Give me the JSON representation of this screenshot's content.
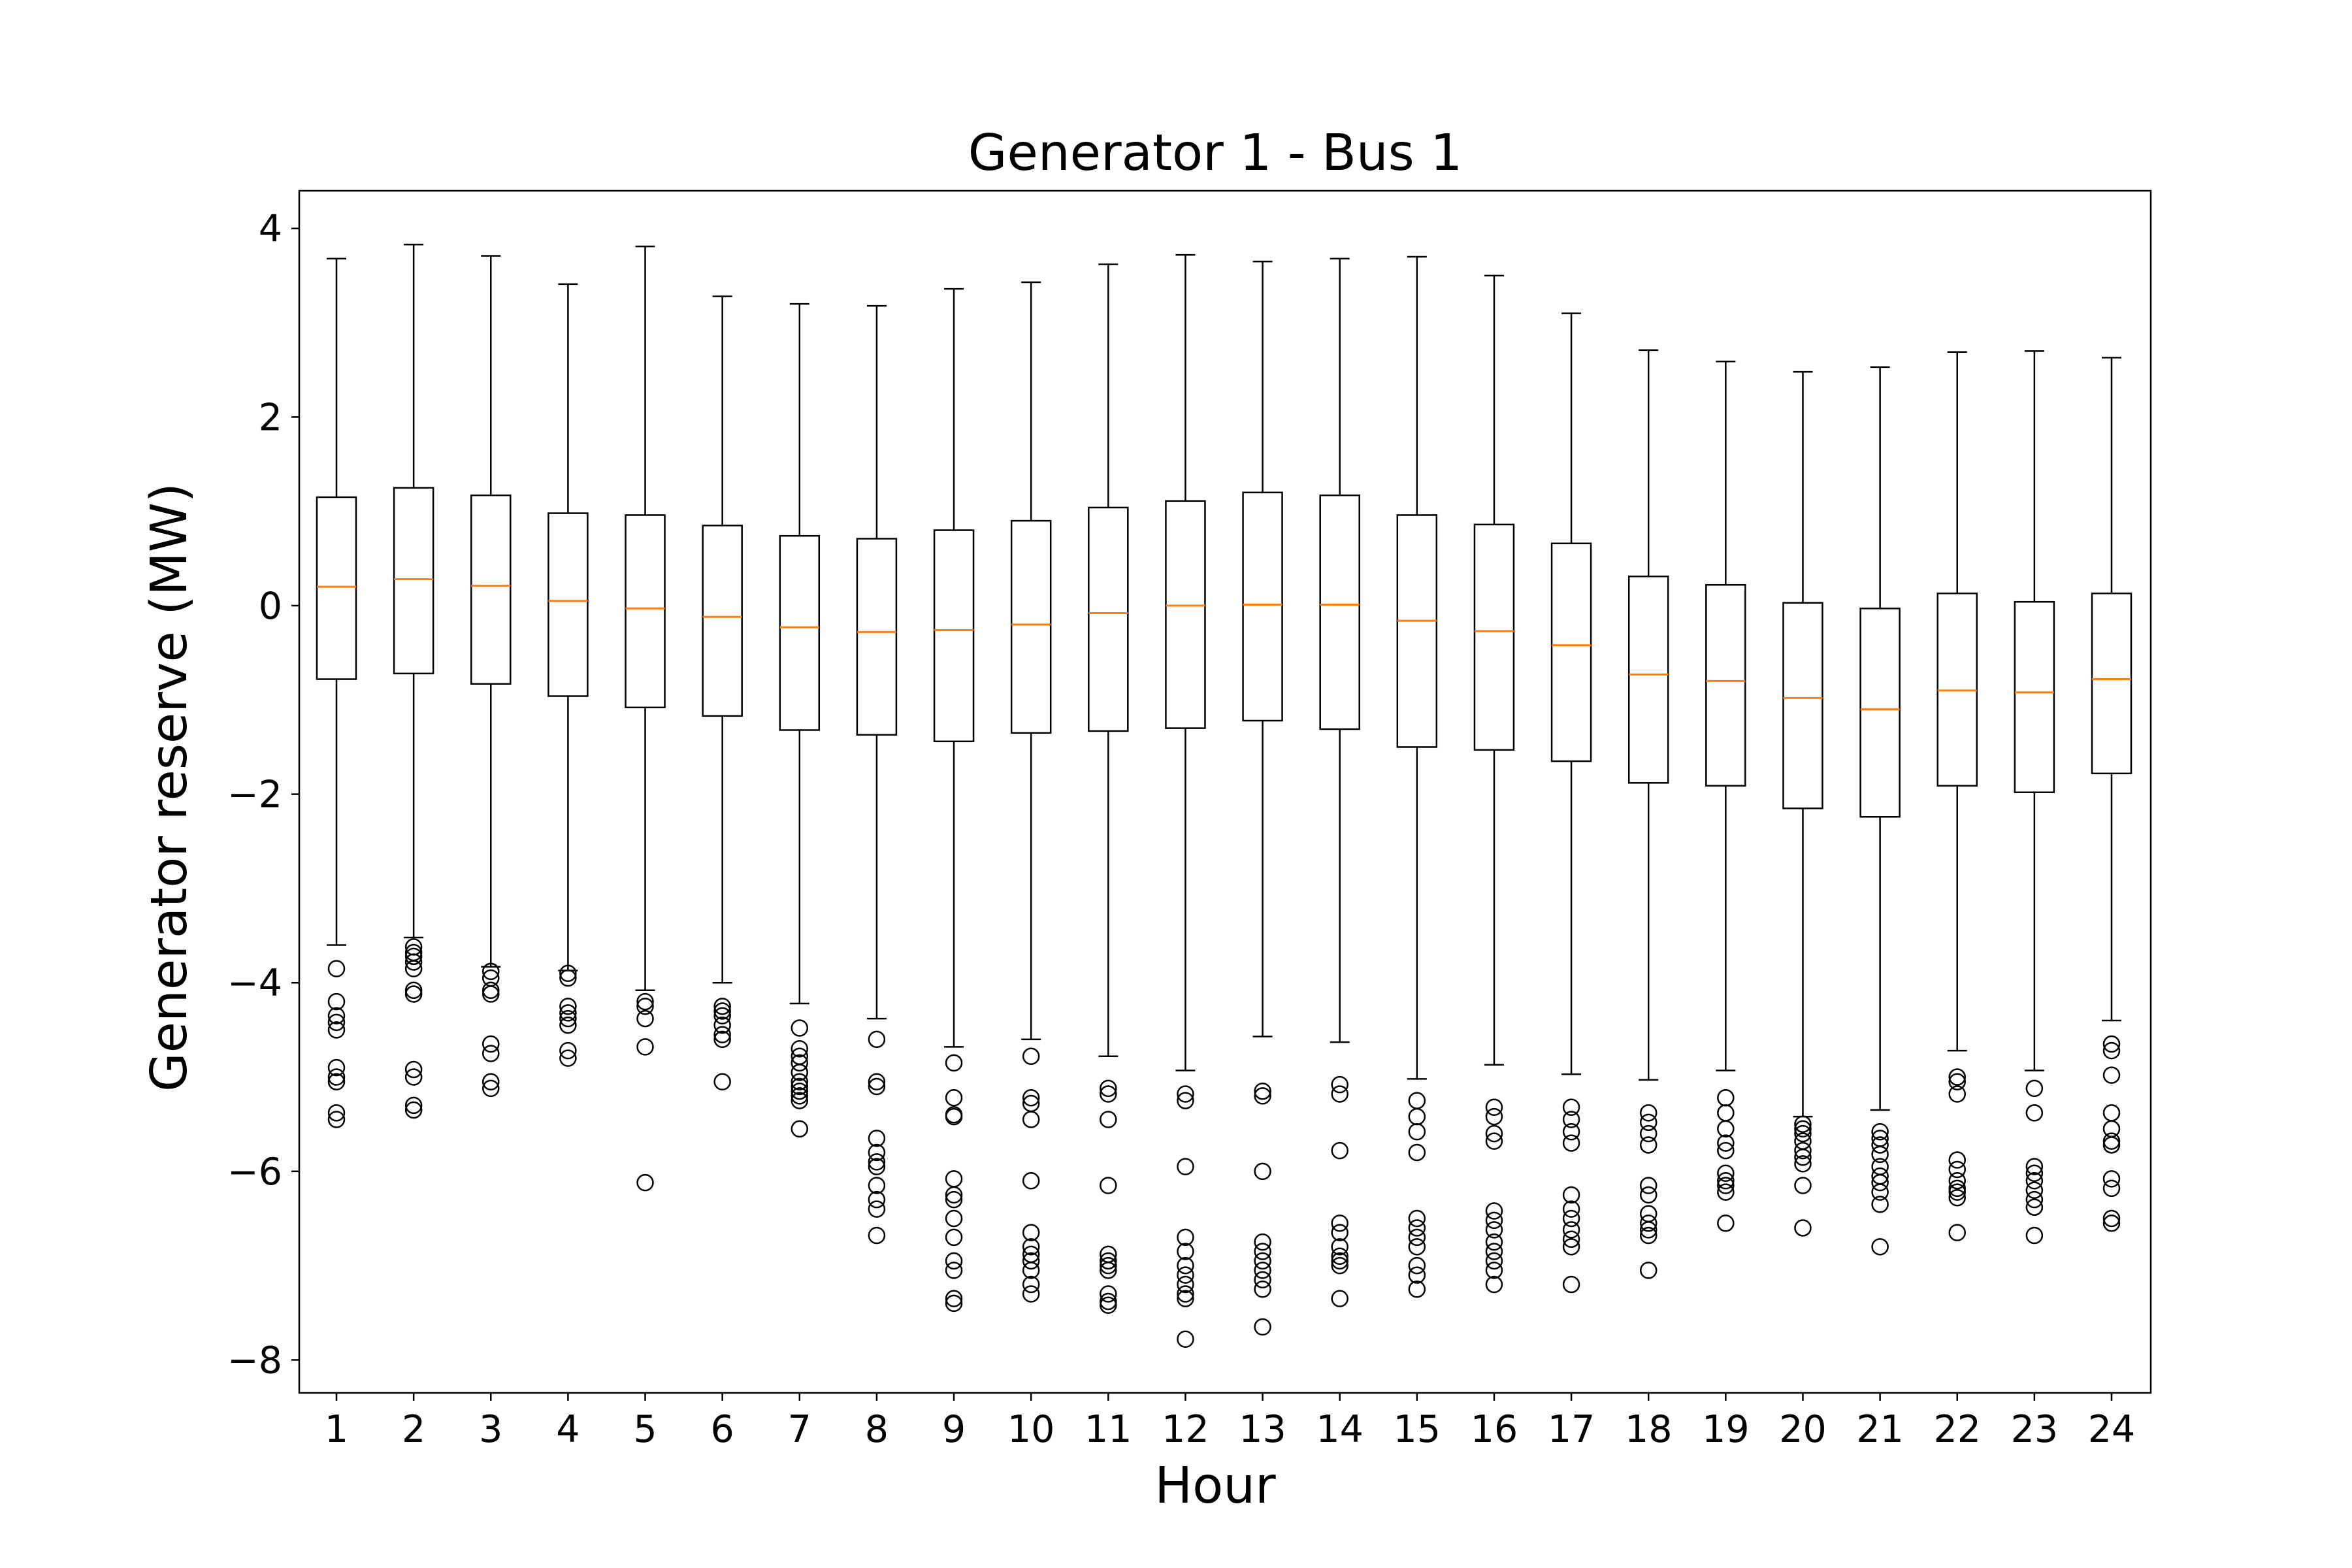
{
  "chart_data": {
    "type": "box",
    "title": "Generator 1 - Bus 1",
    "xlabel": "Hour",
    "ylabel": "Generator reserve (MW)",
    "ylim": [
      -8.35,
      4.4
    ],
    "yticks": [
      -8,
      -6,
      -4,
      -2,
      0,
      2,
      4
    ],
    "ytick_labels": [
      "−8",
      "−6",
      "−4",
      "−2",
      "0",
      "2",
      "4"
    ],
    "categories": [
      "1",
      "2",
      "3",
      "4",
      "5",
      "6",
      "7",
      "8",
      "9",
      "10",
      "11",
      "12",
      "13",
      "14",
      "15",
      "16",
      "17",
      "18",
      "19",
      "20",
      "21",
      "22",
      "23",
      "24"
    ],
    "colors": {
      "box": "#000000",
      "median": "#ff7f0e",
      "flier": "#000000"
    },
    "boxes": [
      {
        "q1": -0.78,
        "median": 0.2,
        "q3": 1.15,
        "whislo": -3.6,
        "whishi": 3.68,
        "fliers": [
          -3.85,
          -4.2,
          -4.35,
          -4.42,
          -4.5,
          -4.9,
          -5.0,
          -5.05,
          -5.38,
          -5.45
        ]
      },
      {
        "q1": -0.72,
        "median": 0.28,
        "q3": 1.25,
        "whislo": -3.52,
        "whishi": 3.83,
        "fliers": [
          -3.62,
          -3.68,
          -3.72,
          -3.78,
          -3.85,
          -4.08,
          -4.12,
          -4.92,
          -5.0,
          -5.3,
          -5.35
        ]
      },
      {
        "q1": -0.83,
        "median": 0.21,
        "q3": 1.17,
        "whislo": -3.83,
        "whishi": 3.71,
        "fliers": [
          -3.88,
          -3.95,
          -4.08,
          -4.12,
          -4.65,
          -4.75,
          -5.05,
          -5.12
        ]
      },
      {
        "q1": -0.96,
        "median": 0.05,
        "q3": 0.98,
        "whislo": -3.87,
        "whishi": 3.41,
        "fliers": [
          -3.9,
          -3.95,
          -4.25,
          -4.32,
          -4.38,
          -4.45,
          -4.72,
          -4.8
        ]
      },
      {
        "q1": -1.08,
        "median": -0.03,
        "q3": 0.96,
        "whislo": -4.08,
        "whishi": 3.81,
        "fliers": [
          -4.2,
          -4.25,
          -4.38,
          -4.68,
          -6.12
        ]
      },
      {
        "q1": -1.17,
        "median": -0.12,
        "q3": 0.85,
        "whislo": -4.0,
        "whishi": 3.28,
        "fliers": [
          -4.25,
          -4.3,
          -4.35,
          -4.45,
          -4.55,
          -4.6,
          -5.05
        ]
      },
      {
        "q1": -1.32,
        "median": -0.23,
        "q3": 0.74,
        "whislo": -4.22,
        "whishi": 3.2,
        "fliers": [
          -4.48,
          -4.7,
          -4.78,
          -4.85,
          -4.95,
          -5.05,
          -5.1,
          -5.15,
          -5.2,
          -5.25,
          -5.55
        ]
      },
      {
        "q1": -1.37,
        "median": -0.28,
        "q3": 0.71,
        "whislo": -4.38,
        "whishi": 3.18,
        "fliers": [
          -4.6,
          -5.05,
          -5.1,
          -5.65,
          -5.8,
          -5.9,
          -5.95,
          -6.15,
          -6.3,
          -6.4,
          -6.68
        ]
      },
      {
        "q1": -1.44,
        "median": -0.26,
        "q3": 0.8,
        "whislo": -4.68,
        "whishi": 3.36,
        "fliers": [
          -4.85,
          -5.22,
          -5.4,
          -5.42,
          -6.08,
          -6.25,
          -6.3,
          -6.5,
          -6.7,
          -6.95,
          -7.05,
          -7.35,
          -7.4
        ]
      },
      {
        "q1": -1.35,
        "median": -0.2,
        "q3": 0.9,
        "whislo": -4.6,
        "whishi": 3.43,
        "fliers": [
          -4.78,
          -5.22,
          -5.28,
          -5.45,
          -6.1,
          -6.65,
          -6.8,
          -6.88,
          -6.95,
          -7.05,
          -7.2,
          -7.3
        ]
      },
      {
        "q1": -1.33,
        "median": -0.08,
        "q3": 1.04,
        "whislo": -4.78,
        "whishi": 3.62,
        "fliers": [
          -5.12,
          -5.18,
          -5.45,
          -6.15,
          -6.88,
          -6.95,
          -7.0,
          -7.05,
          -7.3,
          -7.38,
          -7.42
        ]
      },
      {
        "q1": -1.3,
        "median": 0.0,
        "q3": 1.11,
        "whislo": -4.93,
        "whishi": 3.72,
        "fliers": [
          -5.18,
          -5.25,
          -5.95,
          -6.7,
          -6.85,
          -7.0,
          -7.1,
          -7.2,
          -7.3,
          -7.35,
          -7.78
        ]
      },
      {
        "q1": -1.22,
        "median": 0.01,
        "q3": 1.2,
        "whislo": -4.57,
        "whishi": 3.65,
        "fliers": [
          -5.15,
          -5.2,
          -6.0,
          -6.75,
          -6.85,
          -6.95,
          -7.05,
          -7.15,
          -7.25,
          -7.65
        ]
      },
      {
        "q1": -1.31,
        "median": 0.01,
        "q3": 1.17,
        "whislo": -4.63,
        "whishi": 3.68,
        "fliers": [
          -5.08,
          -5.18,
          -5.78,
          -6.55,
          -6.65,
          -6.8,
          -6.9,
          -6.95,
          -7.0,
          -7.35
        ]
      },
      {
        "q1": -1.5,
        "median": -0.16,
        "q3": 0.96,
        "whislo": -5.02,
        "whishi": 3.7,
        "fliers": [
          -5.25,
          -5.42,
          -5.58,
          -5.8,
          -6.5,
          -6.6,
          -6.7,
          -6.8,
          -7.0,
          -7.1,
          -7.25
        ]
      },
      {
        "q1": -1.53,
        "median": -0.27,
        "q3": 0.86,
        "whislo": -4.87,
        "whishi": 3.5,
        "fliers": [
          -5.32,
          -5.42,
          -5.6,
          -5.68,
          -6.42,
          -6.52,
          -6.62,
          -6.75,
          -6.85,
          -6.95,
          -7.05,
          -7.2
        ]
      },
      {
        "q1": -1.65,
        "median": -0.42,
        "q3": 0.66,
        "whislo": -4.97,
        "whishi": 3.1,
        "fliers": [
          -5.32,
          -5.45,
          -5.58,
          -5.7,
          -6.25,
          -6.4,
          -6.5,
          -6.62,
          -6.72,
          -6.8,
          -7.2
        ]
      },
      {
        "q1": -1.88,
        "median": -0.73,
        "q3": 0.31,
        "whislo": -5.03,
        "whishi": 2.71,
        "fliers": [
          -5.38,
          -5.48,
          -5.6,
          -5.72,
          -6.15,
          -6.25,
          -6.45,
          -6.55,
          -6.62,
          -6.68,
          -7.05
        ]
      },
      {
        "q1": -1.91,
        "median": -0.8,
        "q3": 0.22,
        "whislo": -4.93,
        "whishi": 2.59,
        "fliers": [
          -5.22,
          -5.38,
          -5.55,
          -5.7,
          -5.78,
          -6.02,
          -6.1,
          -6.15,
          -6.22,
          -6.55
        ]
      },
      {
        "q1": -2.15,
        "median": -0.98,
        "q3": 0.03,
        "whislo": -5.42,
        "whishi": 2.48,
        "fliers": [
          -5.5,
          -5.55,
          -5.6,
          -5.68,
          -5.78,
          -5.85,
          -5.92,
          -6.15,
          -6.6
        ]
      },
      {
        "q1": -2.24,
        "median": -1.1,
        "q3": -0.03,
        "whislo": -5.35,
        "whishi": 2.53,
        "fliers": [
          -5.58,
          -5.65,
          -5.72,
          -5.82,
          -5.95,
          -6.05,
          -6.12,
          -6.22,
          -6.35,
          -6.8
        ]
      },
      {
        "q1": -1.91,
        "median": -0.9,
        "q3": 0.13,
        "whislo": -4.72,
        "whishi": 2.69,
        "fliers": [
          -5.0,
          -5.05,
          -5.18,
          -5.88,
          -5.98,
          -6.1,
          -6.18,
          -6.22,
          -6.28,
          -6.65
        ]
      },
      {
        "q1": -1.98,
        "median": -0.92,
        "q3": 0.04,
        "whislo": -4.93,
        "whishi": 2.7,
        "fliers": [
          -5.12,
          -5.38,
          -5.95,
          -6.02,
          -6.1,
          -6.2,
          -6.3,
          -6.38,
          -6.68
        ]
      },
      {
        "q1": -1.78,
        "median": -0.78,
        "q3": 0.13,
        "whislo": -4.4,
        "whishi": 2.63,
        "fliers": [
          -4.65,
          -4.72,
          -4.98,
          -5.38,
          -5.55,
          -5.68,
          -5.72,
          -6.08,
          -6.18,
          -6.5,
          -6.55
        ]
      }
    ]
  }
}
